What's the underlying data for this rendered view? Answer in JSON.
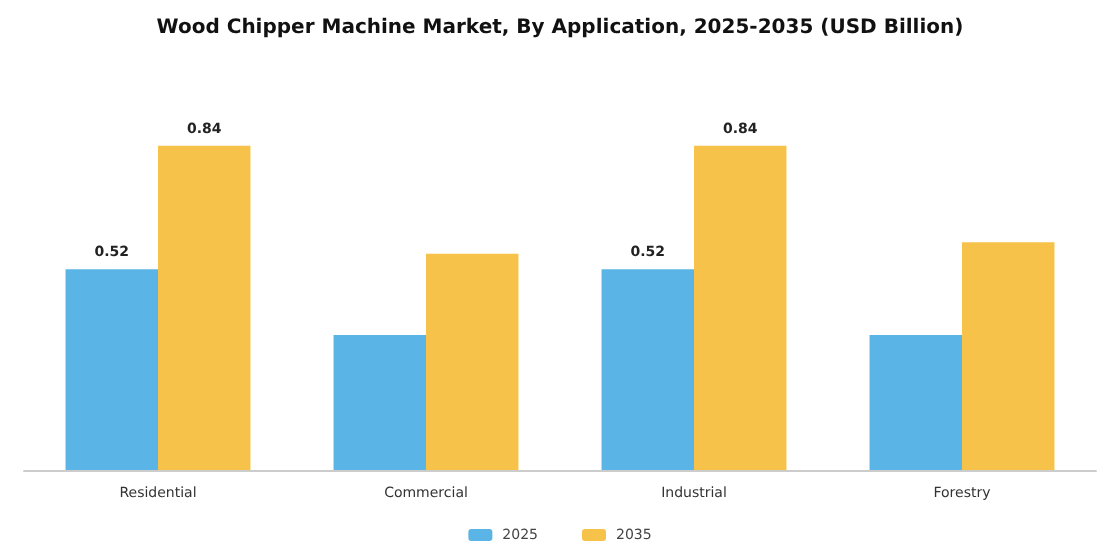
{
  "chart_data": {
    "type": "bar",
    "title": "Wood Chipper Machine Market, By Application, 2025-2035 (USD Billion)",
    "categories": [
      "Residential",
      "Commercial",
      "Industrial",
      "Forestry"
    ],
    "series": [
      {
        "name": "2025",
        "color": "#5ab4e5",
        "values": [
          0.52,
          0.35,
          0.52,
          0.35
        ],
        "value_labels": [
          "0.52",
          null,
          "0.52",
          null
        ]
      },
      {
        "name": "2035",
        "color": "#f7c24a",
        "values": [
          0.84,
          0.56,
          0.84,
          0.59
        ],
        "value_labels": [
          "0.84",
          null,
          "0.84",
          null
        ]
      }
    ],
    "legend": "bottom",
    "grid": false,
    "tick_labels": "x"
  }
}
